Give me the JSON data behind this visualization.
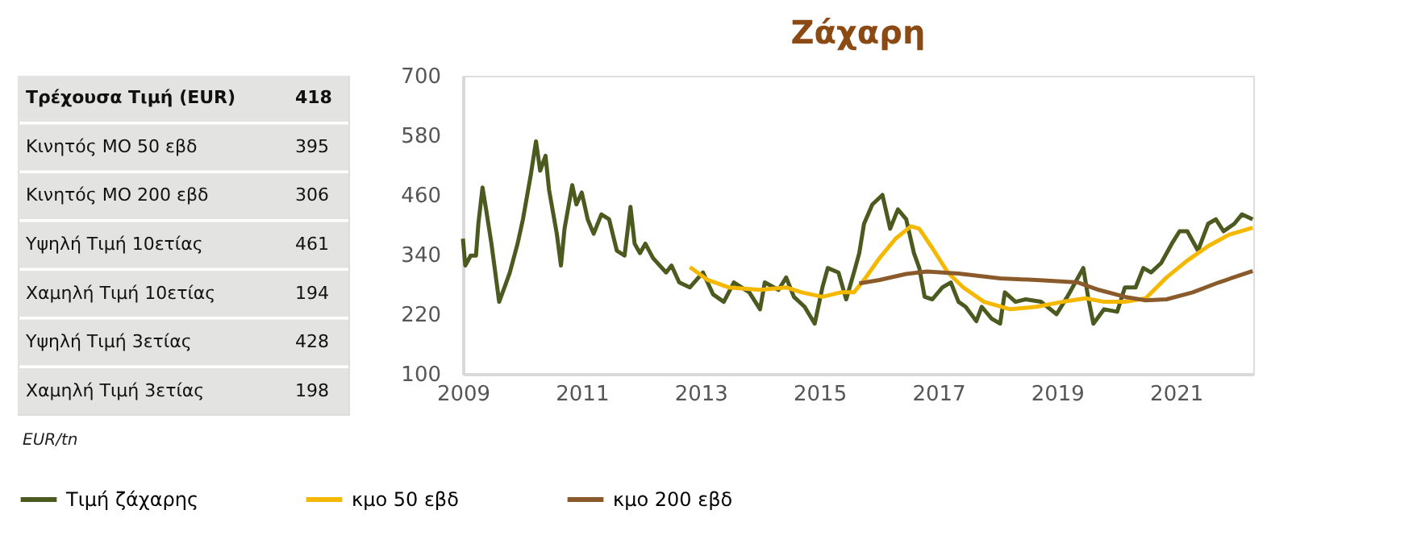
{
  "chart_data": [
    {
      "type": "other",
      "categories": [
        "Τρέχουσα Τιμή (EUR)",
        "Κινητός ΜΟ 50 εβδ",
        "Κινητός ΜΟ 200 εβδ",
        "Υψηλή Τιμή 10ετίας",
        "Χαμηλή Τιμή 10ετίας",
        "Υψηλή Τιμή 3ετίας",
        "Χαμηλή Τιμή 3ετίας"
      ],
      "values": [
        418,
        395,
        306,
        461,
        194,
        428,
        198
      ],
      "data_labels": true,
      "annotations": [
        "EUR/tn"
      ]
    },
    {
      "type": "line",
      "title": "Ζάχαρη",
      "xlim": [
        2009,
        2022.3
      ],
      "xticks": [
        2009,
        2011,
        2013,
        2015,
        2017,
        2019,
        2021
      ],
      "ylim": [
        100,
        700
      ],
      "yticks": [
        100,
        220,
        340,
        460,
        580,
        700
      ],
      "legend": "bottom",
      "series": [
        {
          "name": "Τιμή ζάχαρης",
          "color": "#4b5a1e",
          "x": [
            2009.0,
            2009.04,
            2009.13,
            2009.22,
            2009.26,
            2009.33,
            2009.39,
            2009.48,
            2009.61,
            2009.7,
            2009.79,
            2009.92,
            2010.01,
            2010.14,
            2010.23,
            2010.3,
            2010.39,
            2010.45,
            2010.58,
            2010.65,
            2010.71,
            2010.84,
            2010.91,
            2011.0,
            2011.1,
            2011.2,
            2011.33,
            2011.46,
            2011.59,
            2011.72,
            2011.82,
            2011.89,
            2011.98,
            2012.07,
            2012.2,
            2012.42,
            2012.51,
            2012.64,
            2012.82,
            2013.04,
            2013.21,
            2013.39,
            2013.56,
            2013.82,
            2014.0,
            2014.08,
            2014.31,
            2014.44,
            2014.57,
            2014.75,
            2014.92,
            2015.05,
            2015.14,
            2015.32,
            2015.45,
            2015.58,
            2015.67,
            2015.75,
            2015.89,
            2016.06,
            2016.19,
            2016.32,
            2016.46,
            2016.59,
            2016.68,
            2016.77,
            2016.9,
            2017.07,
            2017.21,
            2017.34,
            2017.46,
            2017.64,
            2017.73,
            2017.9,
            2018.04,
            2018.12,
            2018.3,
            2018.47,
            2018.73,
            2018.99,
            2019.17,
            2019.44,
            2019.52,
            2019.61,
            2019.79,
            2020.01,
            2020.14,
            2020.32,
            2020.45,
            2020.58,
            2020.75,
            2020.93,
            2021.06,
            2021.19,
            2021.37,
            2021.54,
            2021.67,
            2021.8,
            2021.98,
            2022.11,
            2022.29
          ],
          "values": [
            372,
            318,
            338,
            338,
            402,
            475,
            431,
            362,
            245,
            274,
            304,
            362,
            411,
            499,
            568,
            509,
            539,
            470,
            382,
            318,
            392,
            480,
            441,
            465,
            411,
            382,
            421,
            411,
            348,
            338,
            436,
            362,
            343,
            362,
            333,
            304,
            318,
            284,
            274,
            304,
            260,
            245,
            284,
            264,
            230,
            284,
            269,
            294,
            255,
            235,
            201,
            274,
            313,
            304,
            250,
            304,
            343,
            402,
            441,
            460,
            392,
            431,
            411,
            343,
            313,
            255,
            250,
            274,
            284,
            245,
            235,
            206,
            235,
            211,
            201,
            264,
            245,
            250,
            245,
            220,
            255,
            313,
            255,
            201,
            230,
            225,
            274,
            274,
            313,
            304,
            323,
            362,
            387,
            387,
            348,
            402,
            411,
            387,
            402,
            421,
            411
          ]
        },
        {
          "name": "κμο 50 εβδ",
          "color": "#f5b800",
          "x": [
            2012.82,
            2013.12,
            2013.47,
            2014.0,
            2014.44,
            2014.7,
            2015.05,
            2015.36,
            2015.58,
            2015.75,
            2016.01,
            2016.28,
            2016.54,
            2016.68,
            2016.9,
            2017.16,
            2017.42,
            2017.77,
            2018.21,
            2018.65,
            2019.09,
            2019.48,
            2019.79,
            2020.14,
            2020.49,
            2020.84,
            2021.19,
            2021.54,
            2021.89,
            2022.29
          ],
          "values": [
            315,
            289,
            274,
            269,
            274,
            264,
            255,
            264,
            264,
            289,
            333,
            372,
            397,
            392,
            353,
            304,
            274,
            245,
            230,
            235,
            245,
            252,
            245,
            245,
            252,
            294,
            328,
            357,
            380,
            394
          ]
        },
        {
          "name": "κμο 200 εβδ",
          "color": "#8b5a2b",
          "x": [
            2015.67,
            2016.01,
            2016.46,
            2016.81,
            2017.34,
            2018.04,
            2018.65,
            2019.35,
            2019.7,
            2020.14,
            2020.49,
            2020.84,
            2021.28,
            2021.72,
            2022.29
          ],
          "values": [
            282,
            289,
            301,
            306,
            302,
            292,
            289,
            284,
            269,
            255,
            248,
            250,
            264,
            284,
            307
          ]
        }
      ]
    }
  ]
}
